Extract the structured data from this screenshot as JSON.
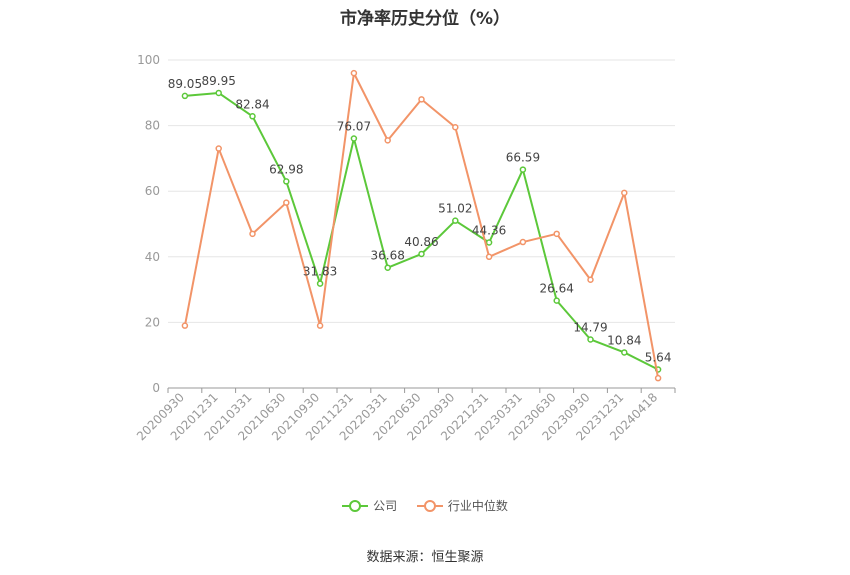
{
  "chart_data": {
    "type": "line",
    "title": "市净率历史分位（%）",
    "categories": [
      "20200930",
      "20201231",
      "20210331",
      "20210630",
      "20210930",
      "20211231",
      "20220331",
      "20220630",
      "20220930",
      "20221231",
      "20230331",
      "20230630",
      "20230930",
      "20231231",
      "20240418"
    ],
    "ylim": [
      0,
      100
    ],
    "yticks": [
      0,
      20,
      40,
      60,
      80,
      100
    ],
    "grid": true,
    "legend_position": "bottom",
    "series": [
      {
        "name": "公司",
        "color": "#5cc83a",
        "values": [
          89.05,
          89.95,
          82.84,
          62.98,
          31.83,
          76.07,
          36.68,
          40.86,
          51.02,
          44.36,
          66.59,
          26.64,
          14.79,
          10.84,
          5.64
        ],
        "labels": [
          "89.05",
          "89.95",
          "82.84",
          "62.98",
          "31.83",
          "76.07",
          "36.68",
          "40.86",
          "51.02",
          "44.36",
          "66.59",
          "26.64",
          "14.79",
          "10.84",
          "5.64"
        ]
      },
      {
        "name": "行业中位数",
        "color": "#f29468",
        "values": [
          19,
          73,
          47,
          56.5,
          19,
          96,
          75.5,
          88,
          79.5,
          40,
          44.5,
          47,
          33,
          59.5,
          3
        ]
      }
    ]
  },
  "source_text": "数据来源：恒生聚源"
}
